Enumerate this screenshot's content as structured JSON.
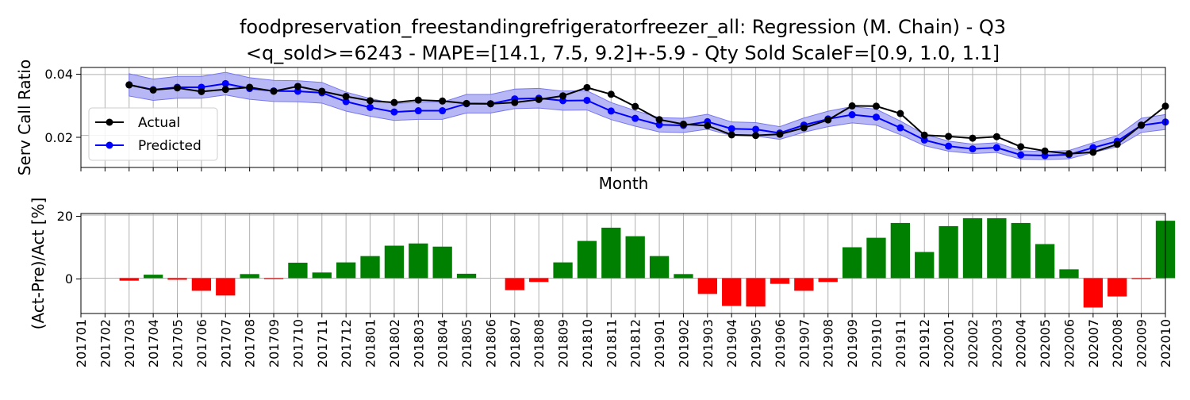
{
  "title_line1": "foodpreservation_freestandingrefrigeratorfreezer_all: Regression (M. Chain) - Q3",
  "title_line2": "<q_sold>=6243 - MAPE=[14.1, 7.5, 9.2]+-5.9 - Qty Sold ScaleF=[0.9, 1.0, 1.1]",
  "colors": {
    "actual": "#000000",
    "predicted": "#0000ff",
    "band": "#aaaaf5",
    "pos": "#008000",
    "neg": "#ff0000",
    "grid": "#b0b0b0"
  },
  "chart_data": [
    {
      "type": "line",
      "xlabel": "Month",
      "ylabel": "Serv Call Ratio",
      "ylim": [
        0.0095,
        0.0423
      ],
      "yticks": [
        "0.02",
        "0.04"
      ],
      "grid": true,
      "legend": {
        "placement": "center-left",
        "entries": [
          "Actual",
          "Predicted"
        ]
      },
      "categories": [
        "201701",
        "201702",
        "201703",
        "201704",
        "201705",
        "201706",
        "201707",
        "201708",
        "201709",
        "201710",
        "201711",
        "201712",
        "201801",
        "201802",
        "201803",
        "201804",
        "201805",
        "201806",
        "201807",
        "201808",
        "201809",
        "201810",
        "201811",
        "201812",
        "201901",
        "201902",
        "201903",
        "201904",
        "201905",
        "201906",
        "201907",
        "201908",
        "201909",
        "201910",
        "201911",
        "201912",
        "202001",
        "202002",
        "202003",
        "202004",
        "202005",
        "202006",
        "202007",
        "202008",
        "202009",
        "202010"
      ],
      "series": [
        {
          "name": "Actual",
          "values": [
            null,
            null,
            0.0366,
            0.0349,
            0.0356,
            0.0344,
            0.0351,
            0.0358,
            0.0345,
            0.0361,
            0.0345,
            0.0328,
            0.0314,
            0.0308,
            0.0316,
            0.0313,
            0.0305,
            0.0304,
            0.0308,
            0.0318,
            0.033,
            0.0357,
            0.0335,
            0.0295,
            0.0252,
            0.0237,
            0.0232,
            0.0202,
            0.02,
            0.0204,
            0.0225,
            0.0251,
            0.0297,
            0.0296,
            0.0272,
            0.0201,
            0.0197,
            0.0191,
            0.0196,
            0.0163,
            0.0149,
            0.014,
            0.0145,
            0.0171,
            0.0234,
            0.0296
          ]
        },
        {
          "name": "Predicted",
          "values": [
            null,
            null,
            0.0366,
            0.035,
            0.0358,
            0.0358,
            0.037,
            0.0354,
            0.0346,
            0.0345,
            0.034,
            0.0311,
            0.0292,
            0.0277,
            0.0281,
            0.0281,
            0.0304,
            0.0304,
            0.032,
            0.0322,
            0.0314,
            0.0315,
            0.028,
            0.0256,
            0.0235,
            0.0233,
            0.0245,
            0.0222,
            0.022,
            0.0208,
            0.0234,
            0.0254,
            0.0268,
            0.026,
            0.0225,
            0.0185,
            0.0165,
            0.0156,
            0.016,
            0.0136,
            0.0134,
            0.0137,
            0.016,
            0.0181,
            0.0233,
            0.0244
          ]
        }
      ],
      "band": {
        "lower_scale": 0.9,
        "upper_scale": 1.1,
        "of": "Predicted"
      }
    },
    {
      "type": "bar",
      "ylabel": "(Act-Pre)/Act [%]",
      "ylim": [
        -11.2,
        20.5
      ],
      "yticks": [
        "0",
        "20"
      ],
      "grid": true,
      "categories": [
        "201701",
        "201702",
        "201703",
        "201704",
        "201705",
        "201706",
        "201707",
        "201708",
        "201709",
        "201710",
        "201711",
        "201712",
        "201801",
        "201802",
        "201803",
        "201804",
        "201805",
        "201806",
        "201807",
        "201808",
        "201809",
        "201810",
        "201811",
        "201812",
        "201901",
        "201902",
        "201903",
        "201904",
        "201905",
        "201906",
        "201907",
        "201908",
        "201909",
        "201910",
        "201911",
        "201912",
        "202001",
        "202002",
        "202003",
        "202004",
        "202005",
        "202006",
        "202007",
        "202008",
        "202009",
        "202010"
      ],
      "values": [
        0,
        0,
        -0.8,
        1.1,
        -0.5,
        -4.0,
        -5.5,
        1.3,
        -0.3,
        4.9,
        1.8,
        5.0,
        7.0,
        10.3,
        11.0,
        10.0,
        1.4,
        0,
        -3.8,
        -1.2,
        5.0,
        11.8,
        16.0,
        13.3,
        7.0,
        1.3,
        -5.0,
        -8.8,
        -9.0,
        -1.8,
        -4.0,
        -1.2,
        9.8,
        12.8,
        17.5,
        8.3,
        16.5,
        19.0,
        19.0,
        17.5,
        10.8,
        2.8,
        -9.3,
        -5.8,
        -0.3,
        18.2
      ]
    }
  ]
}
